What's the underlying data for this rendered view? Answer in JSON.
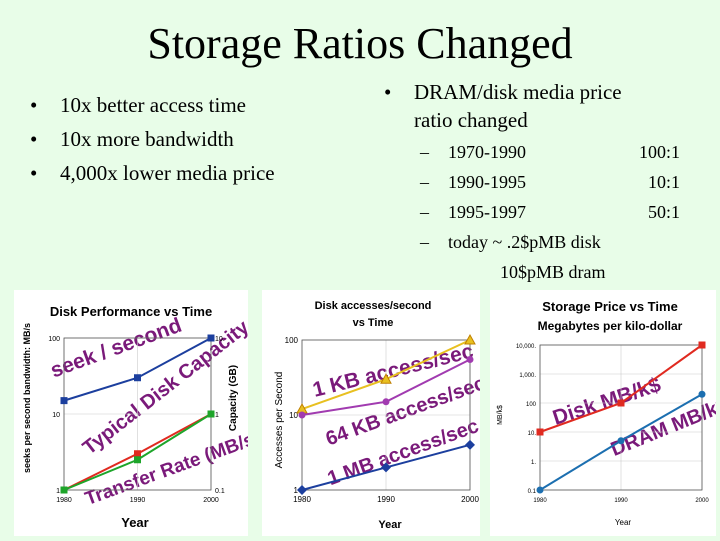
{
  "title": "Storage Ratios Changed",
  "left_bullets": [
    "10x better access time",
    "10x more bandwidth",
    "4,000x lower media price"
  ],
  "right_bullet": {
    "line1": "DRAM/disk media price",
    "line2": "ratio changed"
  },
  "sub_items": [
    {
      "period": "1970-1990",
      "ratio": "100:1"
    },
    {
      "period": "1990-1995",
      "ratio": "10:1"
    },
    {
      "period": "1995-1997",
      "ratio": "50:1"
    }
  ],
  "today": {
    "line1": "today ~ .2$pMB disk",
    "line2": "10$pMB dram"
  },
  "chart_data": [
    {
      "type": "line",
      "title": "Disk Performance vs Time",
      "xlabel": "Year",
      "ylabel": "seeks per second bandwidth: MB/s",
      "y2label": "Capacity (GB)",
      "x_ticks": [
        "1980",
        "1990",
        "2000"
      ],
      "y_ticks": [
        "1",
        "10",
        "100"
      ],
      "y2_ticks": [
        "0.1",
        "1",
        "10."
      ],
      "series": [
        {
          "x": [
            1980,
            1990,
            2000
          ],
          "values": [
            15,
            30,
            100
          ],
          "color": "#1c3f9e",
          "marker": "square"
        },
        {
          "x": [
            1980,
            1990,
            2000
          ],
          "values": [
            1,
            3,
            10
          ],
          "color": "#e02a20",
          "marker": "square"
        },
        {
          "x": [
            1980,
            1990,
            2000
          ],
          "values": [
            1,
            2.5,
            10
          ],
          "color": "#1ea52a",
          "marker": "square"
        }
      ],
      "annotations": [
        "seek / second",
        "Typical Disk Capacity",
        "Transfer Rate (MB/s)"
      ]
    },
    {
      "type": "line",
      "title": "Disk accesses/second vs Time",
      "xlabel": "Year",
      "ylabel": "Accesses per Second",
      "x_ticks": [
        "1980",
        "1990",
        "2000"
      ],
      "y_ticks": [
        "1",
        "10",
        "100"
      ],
      "series": [
        {
          "x": [
            1980,
            1990,
            2000
          ],
          "values": [
            12,
            30,
            100
          ],
          "color": "#e8c020",
          "marker": "triangle"
        },
        {
          "x": [
            1980,
            1990,
            2000
          ],
          "values": [
            10,
            15,
            55
          ],
          "color": "#a13bb0",
          "marker": "circle"
        },
        {
          "x": [
            1980,
            1990,
            2000
          ],
          "values": [
            1,
            2,
            4
          ],
          "color": "#1c3f9e",
          "marker": "diamond"
        }
      ],
      "annotations": [
        "1 KB access/sec",
        "64 KB access/sec",
        "1 MB access/sec"
      ]
    },
    {
      "type": "line",
      "title": "Storage Price vs Time",
      "subtitle": "Megabytes per kilo-dollar",
      "xlabel": "Year",
      "ylabel": "MB/k$",
      "x_ticks": [
        "1980",
        "1990",
        "2000"
      ],
      "y_ticks": [
        "0.1",
        "1.",
        "10.",
        "100",
        "1,000.",
        "10,000."
      ],
      "series": [
        {
          "x": [
            1980,
            1990,
            2000
          ],
          "values": [
            10,
            100,
            10000
          ],
          "color": "#e02a20",
          "marker": "square"
        },
        {
          "x": [
            1980,
            1990,
            2000
          ],
          "values": [
            0.1,
            5,
            200
          ],
          "color": "#1c6fb0",
          "marker": "circle"
        }
      ],
      "annotations": [
        "Disk MB/k$",
        "DRAM MB/k$"
      ]
    }
  ]
}
